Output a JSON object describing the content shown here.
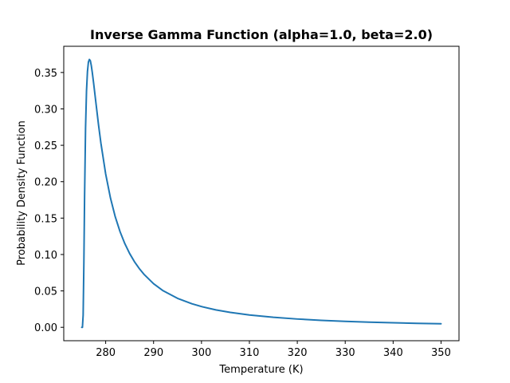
{
  "chart_data": {
    "type": "line",
    "title": "Inverse Gamma Function (alpha=1.0, beta=2.0)",
    "xlabel": "Temperature (K)",
    "ylabel": "Probability Density Function",
    "xlim": [
      271.25,
      353.75
    ],
    "ylim": [
      -0.0184,
      0.386
    ],
    "xticks": [
      280,
      290,
      300,
      310,
      320,
      330,
      340,
      350
    ],
    "yticks": [
      0.0,
      0.05,
      0.1,
      0.15,
      0.2,
      0.25,
      0.3,
      0.35
    ],
    "xtick_labels": [
      "280",
      "290",
      "300",
      "310",
      "320",
      "330",
      "340",
      "350"
    ],
    "ytick_labels": [
      "0.00",
      "0.05",
      "0.10",
      "0.15",
      "0.20",
      "0.25",
      "0.30",
      "0.35"
    ],
    "grid": false,
    "series": [
      {
        "color": "#1f77b4",
        "x": [
          275.0,
          275.15,
          275.3,
          275.45,
          275.6,
          275.8,
          276.0,
          276.2,
          276.4,
          276.6,
          276.8,
          277.0,
          277.2,
          277.5,
          278.0,
          278.5,
          279.0,
          280.0,
          281.0,
          282.0,
          283.0,
          284.0,
          285.0,
          286.0,
          287.0,
          288.0,
          290.0,
          292.0,
          295.0,
          298.0,
          300.0,
          303.0,
          306.0,
          310.0,
          315.0,
          320.0,
          325.0,
          330.0,
          335.0,
          340.0,
          345.0,
          350.0
        ],
        "y": [
          0.0,
          0.0,
          0.0167,
          0.0877,
          0.1804,
          0.2741,
          0.3247,
          0.3514,
          0.3644,
          0.3679,
          0.3662,
          0.3595,
          0.3503,
          0.3345,
          0.3064,
          0.2785,
          0.2532,
          0.2106,
          0.1776,
          0.1518,
          0.1314,
          0.1149,
          0.1014,
          0.0902,
          0.0808,
          0.0728,
          0.0599,
          0.0502,
          0.0398,
          0.0324,
          0.0285,
          0.0239,
          0.0205,
          0.017,
          0.0138,
          0.0114,
          0.0096,
          0.0082,
          0.0071,
          0.0062,
          0.0055,
          0.0049
        ]
      }
    ]
  }
}
